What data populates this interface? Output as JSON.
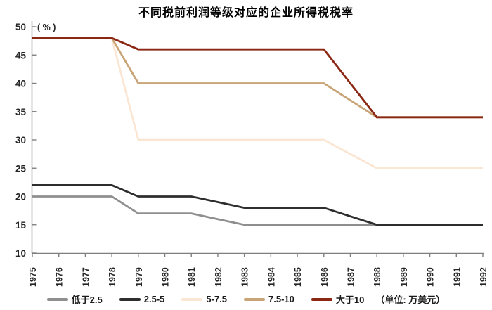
{
  "chart_data": {
    "type": "line",
    "title": "不同税前利润等级对应的企业所得税税率",
    "y_axis_label": "( % )",
    "unit_note": "（单位: 万美元）",
    "legend_position": "bottom",
    "grid": false,
    "ylim": [
      10,
      50
    ],
    "y_ticks": [
      10,
      15,
      20,
      25,
      30,
      35,
      40,
      45,
      50
    ],
    "x": [
      1975,
      1976,
      1977,
      1978,
      1979,
      1980,
      1981,
      1982,
      1983,
      1984,
      1985,
      1986,
      1987,
      1988,
      1989,
      1990,
      1991,
      1992
    ],
    "series": [
      {
        "id": "below-2-5",
        "name": "低于2.5",
        "color": "#8f8f8f",
        "values": [
          20,
          20,
          20,
          20,
          17,
          17,
          17,
          16,
          15,
          15,
          15,
          15,
          15,
          15,
          15,
          15,
          15,
          15
        ]
      },
      {
        "id": "2-5-to-5",
        "name": "2.5-5",
        "color": "#2e2e2e",
        "values": [
          22,
          22,
          22,
          22,
          20,
          20,
          20,
          19,
          18,
          18,
          18,
          18,
          16.5,
          15,
          15,
          15,
          15,
          15
        ]
      },
      {
        "id": "5-to-7-5",
        "name": "5-7.5",
        "color": "#fbe6d3",
        "values": [
          48,
          48,
          48,
          48,
          30,
          30,
          30,
          30,
          30,
          30,
          30,
          30,
          27.5,
          25,
          25,
          25,
          25,
          25
        ]
      },
      {
        "id": "7-5-to-10",
        "name": "7.5-10",
        "color": "#c8a476",
        "values": [
          48,
          48,
          48,
          48,
          40,
          40,
          40,
          40,
          40,
          40,
          40,
          40,
          37,
          34,
          34,
          34,
          34,
          34
        ]
      },
      {
        "id": "above-10",
        "name": "大于10",
        "color": "#8b2712",
        "values": [
          48,
          48,
          48,
          48,
          46,
          46,
          46,
          46,
          46,
          46,
          46,
          46,
          40,
          34,
          34,
          34,
          34,
          34
        ]
      }
    ]
  }
}
